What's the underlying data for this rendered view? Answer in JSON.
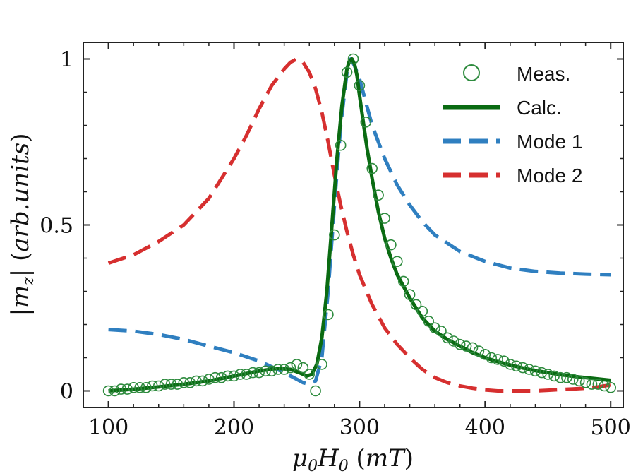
{
  "chart_data": {
    "type": "line",
    "xlabel": "μ0H0 (mT)",
    "ylabel": "|mz| (arb.units)",
    "xlim": [
      80,
      510
    ],
    "ylim": [
      -0.05,
      1.05
    ],
    "x_ticks": [
      100,
      200,
      300,
      400,
      500
    ],
    "y_ticks": [
      0,
      0.5,
      1
    ],
    "x_tick_labels": [
      "100",
      "200",
      "300",
      "400",
      "500"
    ],
    "y_tick_labels": [
      "0",
      "0.5",
      "1"
    ],
    "grid": false,
    "legend_position": "top-right",
    "colors": {
      "meas": "#2e8b3e",
      "calc": "#0a6b12",
      "mode1": "#2f7fc0",
      "mode2": "#d62f2f"
    },
    "series": [
      {
        "name": "Meas.",
        "style": "markers",
        "x": [
          100,
          105,
          110,
          115,
          120,
          125,
          130,
          135,
          140,
          145,
          150,
          155,
          160,
          165,
          170,
          175,
          180,
          185,
          190,
          195,
          200,
          205,
          210,
          215,
          220,
          225,
          230,
          235,
          240,
          245,
          250,
          255,
          260,
          265,
          270,
          275,
          280,
          285,
          290,
          295,
          300,
          305,
          310,
          315,
          320,
          325,
          330,
          335,
          340,
          345,
          350,
          355,
          360,
          365,
          370,
          375,
          380,
          385,
          390,
          395,
          400,
          405,
          410,
          415,
          420,
          425,
          430,
          435,
          440,
          445,
          450,
          455,
          460,
          465,
          470,
          475,
          480,
          485,
          490,
          495,
          500
        ],
        "values": [
          0.0,
          0.0,
          0.005,
          0.005,
          0.01,
          0.01,
          0.01,
          0.015,
          0.015,
          0.02,
          0.02,
          0.02,
          0.025,
          0.025,
          0.03,
          0.03,
          0.035,
          0.04,
          0.04,
          0.045,
          0.045,
          0.05,
          0.05,
          0.055,
          0.055,
          0.06,
          0.06,
          0.065,
          0.065,
          0.07,
          0.08,
          0.07,
          0.05,
          0.0,
          0.08,
          0.23,
          0.47,
          0.74,
          0.96,
          1.0,
          0.92,
          0.81,
          0.67,
          0.59,
          0.52,
          0.44,
          0.39,
          0.33,
          0.29,
          0.26,
          0.24,
          0.21,
          0.19,
          0.18,
          0.16,
          0.15,
          0.14,
          0.135,
          0.13,
          0.12,
          0.11,
          0.1,
          0.095,
          0.09,
          0.08,
          0.075,
          0.07,
          0.065,
          0.06,
          0.055,
          0.05,
          0.045,
          0.04,
          0.04,
          0.035,
          0.03,
          0.025,
          0.02,
          0.02,
          0.015,
          0.01
        ]
      },
      {
        "name": "Calc.",
        "style": "solid",
        "x": [
          100,
          120,
          140,
          160,
          180,
          200,
          220,
          235,
          245,
          252,
          258,
          262,
          266,
          270,
          274,
          278,
          282,
          286,
          290,
          292,
          294,
          296,
          298,
          300,
          303,
          306,
          310,
          315,
          320,
          325,
          330,
          340,
          350,
          360,
          370,
          380,
          390,
          400,
          410,
          420,
          430,
          440,
          450,
          460,
          470,
          480,
          490,
          500
        ],
        "values": [
          0.0,
          0.005,
          0.012,
          0.02,
          0.03,
          0.045,
          0.06,
          0.068,
          0.065,
          0.055,
          0.045,
          0.05,
          0.08,
          0.16,
          0.3,
          0.5,
          0.7,
          0.86,
          0.97,
          0.995,
          1.0,
          0.985,
          0.95,
          0.89,
          0.81,
          0.73,
          0.64,
          0.54,
          0.46,
          0.4,
          0.35,
          0.28,
          0.22,
          0.18,
          0.155,
          0.135,
          0.115,
          0.1,
          0.088,
          0.078,
          0.069,
          0.061,
          0.055,
          0.049,
          0.044,
          0.04,
          0.036,
          0.032
        ]
      },
      {
        "name": "Mode 1",
        "style": "dashed",
        "x": [
          100,
          120,
          140,
          160,
          180,
          200,
          220,
          240,
          250,
          255,
          260,
          265,
          270,
          275,
          280,
          285,
          290,
          293,
          296,
          300,
          305,
          310,
          320,
          330,
          340,
          350,
          360,
          380,
          400,
          420,
          440,
          460,
          480,
          500
        ],
        "values": [
          0.185,
          0.18,
          0.17,
          0.155,
          0.135,
          0.115,
          0.09,
          0.055,
          0.035,
          0.025,
          0.02,
          0.03,
          0.1,
          0.3,
          0.56,
          0.8,
          0.96,
          1.0,
          0.98,
          0.94,
          0.87,
          0.8,
          0.7,
          0.62,
          0.56,
          0.51,
          0.47,
          0.42,
          0.39,
          0.37,
          0.36,
          0.355,
          0.352,
          0.35
        ]
      },
      {
        "name": "Mode 2",
        "style": "dashed",
        "x": [
          100,
          120,
          140,
          160,
          180,
          200,
          210,
          220,
          230,
          240,
          245,
          250,
          255,
          260,
          265,
          270,
          275,
          280,
          285,
          290,
          295,
          300,
          310,
          320,
          330,
          340,
          350,
          360,
          370,
          380,
          390,
          400,
          410,
          420,
          430,
          440,
          450,
          460,
          470,
          480,
          490,
          500
        ],
        "values": [
          0.385,
          0.41,
          0.45,
          0.5,
          0.58,
          0.7,
          0.77,
          0.85,
          0.92,
          0.97,
          0.99,
          1.0,
          0.99,
          0.96,
          0.91,
          0.84,
          0.75,
          0.65,
          0.56,
          0.48,
          0.41,
          0.35,
          0.26,
          0.19,
          0.14,
          0.1,
          0.065,
          0.04,
          0.025,
          0.015,
          0.008,
          0.003,
          0.0,
          0.0,
          0.0,
          0.0,
          0.002,
          0.004,
          0.006,
          0.008,
          0.012,
          0.018
        ]
      }
    ]
  }
}
